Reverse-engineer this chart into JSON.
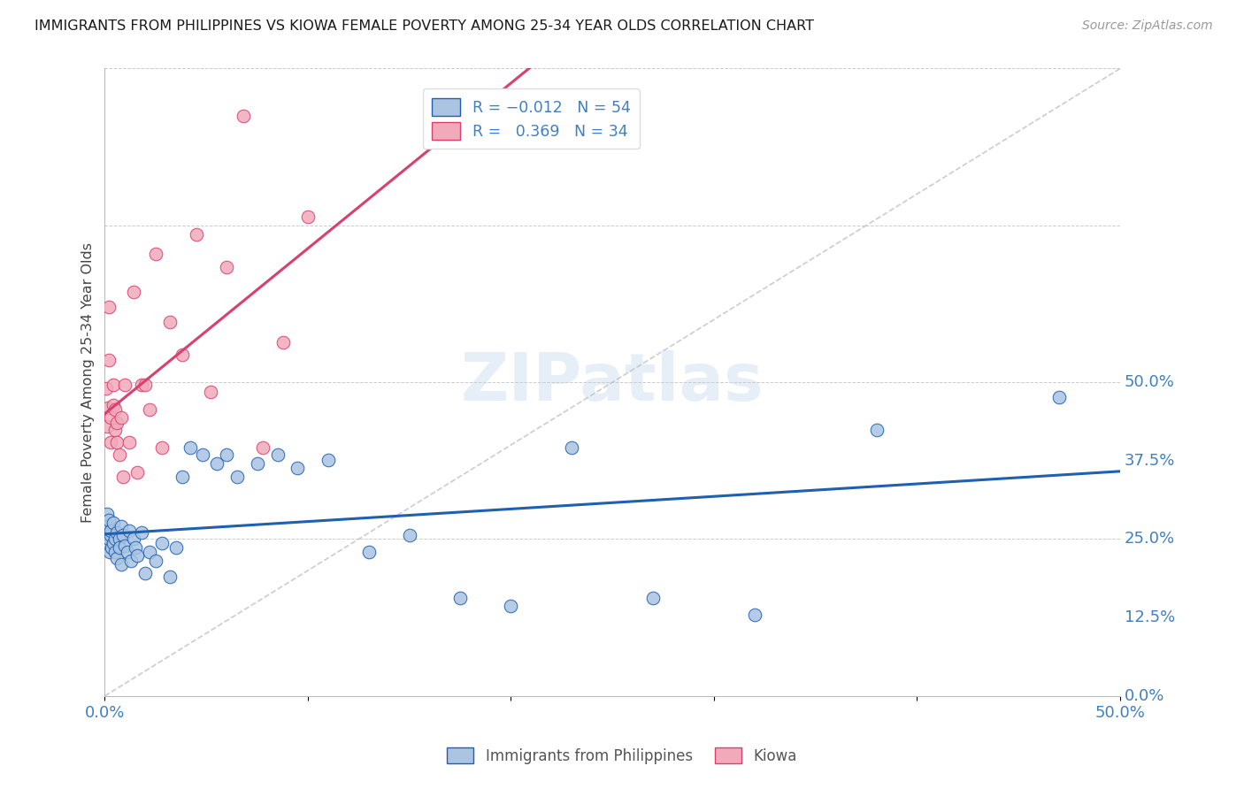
{
  "title": "IMMIGRANTS FROM PHILIPPINES VS KIOWA FEMALE POVERTY AMONG 25-34 YEAR OLDS CORRELATION CHART",
  "source": "Source: ZipAtlas.com",
  "ylabel": "Female Poverty Among 25-34 Year Olds",
  "color_blue": "#aac4e2",
  "color_pink": "#f2aabb",
  "line_blue": "#2060b0",
  "line_pink": "#d84070",
  "line_gray": "#c0c0c0",
  "text_blue": "#4080c0",
  "xlim": [
    0.0,
    0.5
  ],
  "ylim": [
    0.0,
    0.5
  ],
  "ytick_values": [
    0.0,
    0.125,
    0.25,
    0.375,
    0.5
  ],
  "ytick_labels": [
    "0.0%",
    "12.5%",
    "25.0%",
    "37.5%",
    "50.0%"
  ],
  "philippines_x": [
    0.0008,
    0.001,
    0.0013,
    0.0015,
    0.002,
    0.002,
    0.0025,
    0.003,
    0.003,
    0.0035,
    0.004,
    0.004,
    0.005,
    0.005,
    0.006,
    0.006,
    0.007,
    0.007,
    0.008,
    0.008,
    0.009,
    0.01,
    0.011,
    0.012,
    0.013,
    0.014,
    0.015,
    0.016,
    0.018,
    0.02,
    0.022,
    0.025,
    0.028,
    0.032,
    0.035,
    0.038,
    0.042,
    0.048,
    0.055,
    0.06,
    0.065,
    0.075,
    0.085,
    0.095,
    0.11,
    0.13,
    0.15,
    0.175,
    0.2,
    0.23,
    0.27,
    0.32,
    0.38,
    0.47
  ],
  "philippines_y": [
    0.13,
    0.145,
    0.12,
    0.135,
    0.125,
    0.14,
    0.115,
    0.128,
    0.132,
    0.118,
    0.122,
    0.138,
    0.125,
    0.115,
    0.13,
    0.11,
    0.125,
    0.118,
    0.135,
    0.105,
    0.128,
    0.12,
    0.115,
    0.132,
    0.108,
    0.125,
    0.118,
    0.112,
    0.13,
    0.098,
    0.115,
    0.108,
    0.122,
    0.095,
    0.118,
    0.175,
    0.198,
    0.192,
    0.185,
    0.192,
    0.175,
    0.185,
    0.192,
    0.182,
    0.188,
    0.115,
    0.128,
    0.078,
    0.072,
    0.198,
    0.078,
    0.065,
    0.212,
    0.238
  ],
  "kiowa_x": [
    0.0005,
    0.001,
    0.0015,
    0.002,
    0.002,
    0.003,
    0.003,
    0.004,
    0.004,
    0.005,
    0.005,
    0.006,
    0.006,
    0.007,
    0.008,
    0.009,
    0.01,
    0.012,
    0.014,
    0.016,
    0.018,
    0.02,
    0.022,
    0.025,
    0.028,
    0.032,
    0.038,
    0.045,
    0.052,
    0.06,
    0.068,
    0.078,
    0.088,
    0.1
  ],
  "kiowa_y": [
    0.245,
    0.215,
    0.23,
    0.31,
    0.268,
    0.222,
    0.202,
    0.248,
    0.232,
    0.212,
    0.228,
    0.202,
    0.218,
    0.192,
    0.222,
    0.175,
    0.248,
    0.202,
    0.322,
    0.178,
    0.248,
    0.248,
    0.228,
    0.352,
    0.198,
    0.298,
    0.272,
    0.368,
    0.242,
    0.342,
    0.462,
    0.198,
    0.282,
    0.382
  ],
  "blue_trend_slope": -0.012,
  "blue_trend_intercept": 0.1275,
  "pink_trend_slope": 2.8,
  "pink_trend_intercept": 0.215
}
